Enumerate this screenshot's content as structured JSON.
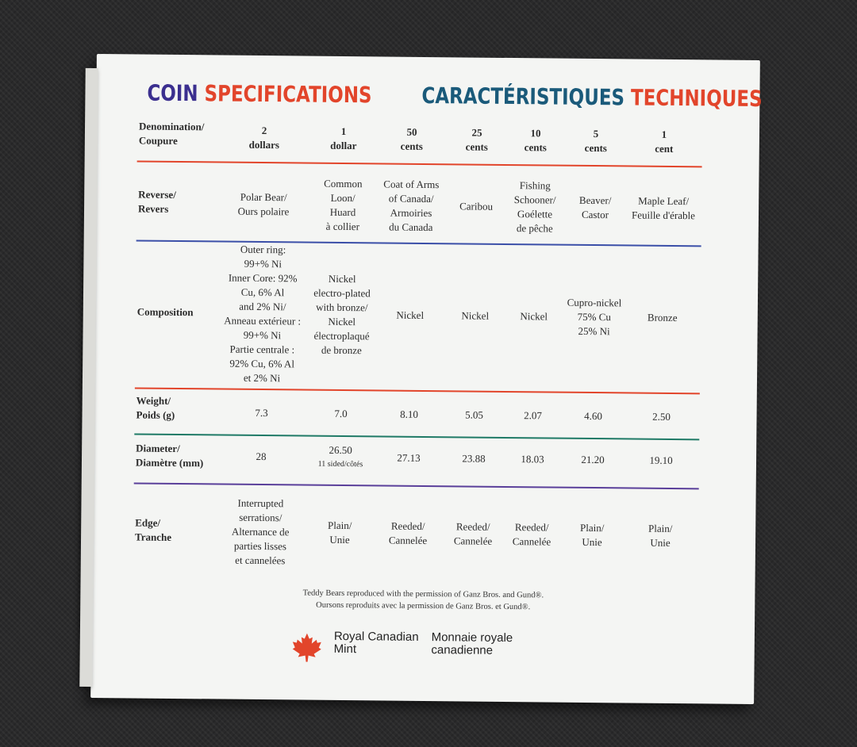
{
  "header": {
    "en_word1": "COIN",
    "en_word2": "SPECIFICATIONS",
    "fr_word1": "CARACTÉRISTIQUES",
    "fr_word2": "TECHNIQUES"
  },
  "rows": [
    {
      "label": "Denomination/\nCoupure",
      "values": [
        "2\ndollars",
        "1\ndollar",
        "50\ncents",
        "25\ncents",
        "10\ncents",
        "5\ncents",
        "1\ncent"
      ]
    },
    {
      "label": "Reverse/\nRevers",
      "values": [
        "Polar Bear/\nOurs polaire",
        "Common\nLoon/\nHuard\nà collier",
        "Coat of Arms\nof Canada/\nArmoiries\ndu Canada",
        "Caribou",
        "Fishing\nSchooner/\nGoélette\nde pêche",
        "Beaver/\nCastor",
        "Maple Leaf/\nFeuille d'érable"
      ]
    },
    {
      "label": "Composition",
      "values": [
        "Outer ring:\n99+% Ni\nInner Core: 92%\nCu, 6% Al\nand 2% Ni/\nAnneau extérieur :\n99+% Ni\nPartie centrale :\n92% Cu, 6% Al\net 2% Ni",
        "Nickel\nelectro-plated\nwith bronze/\nNickel\nélectroplaqué\nde bronze",
        "Nickel",
        "Nickel",
        "Nickel",
        "Cupro-nickel\n75% Cu\n25% Ni",
        "Bronze"
      ]
    },
    {
      "label": "Weight/\nPoids (g)",
      "values": [
        "7.3",
        "7.0",
        "8.10",
        "5.05",
        "2.07",
        "4.60",
        "2.50"
      ]
    },
    {
      "label": "Diameter/\nDiamètre (mm)",
      "values": [
        "28",
        "26.50",
        "27.13",
        "23.88",
        "18.03",
        "21.20",
        "19.10"
      ],
      "note_1_dollar": "11 sided/côtés"
    },
    {
      "label": "Edge/\nTranche",
      "values": [
        "Interrupted\nserrations/\nAlternance de\nparties lisses\net cannelées",
        "Plain/\nUnie",
        "Reeded/\nCannelée",
        "Reeded/\nCannelée",
        "Reeded/\nCannelée",
        "Plain/\nUnie",
        "Plain/\nUnie"
      ]
    }
  ],
  "credit": {
    "en": "Teddy Bears reproduced with the permission of Ganz Bros. and Gund®.",
    "fr": "Oursons reproduits avec la permission de Ganz Bros. et Gund®."
  },
  "logo": {
    "icon": "maple-leaf-icon",
    "en_line1": "Royal Canadian",
    "en_line2": "Mint",
    "fr_line1": "Monnaie royale",
    "fr_line2": "canadienne"
  },
  "colors": {
    "purple": "#3b2f8f",
    "red": "#e2452b",
    "teal": "#1a5a7a",
    "rule_red": "#e2452b",
    "rule_blue": "#3b4fa8",
    "rule_green": "#1f7a66",
    "rule_violet": "#5a3f9a"
  }
}
